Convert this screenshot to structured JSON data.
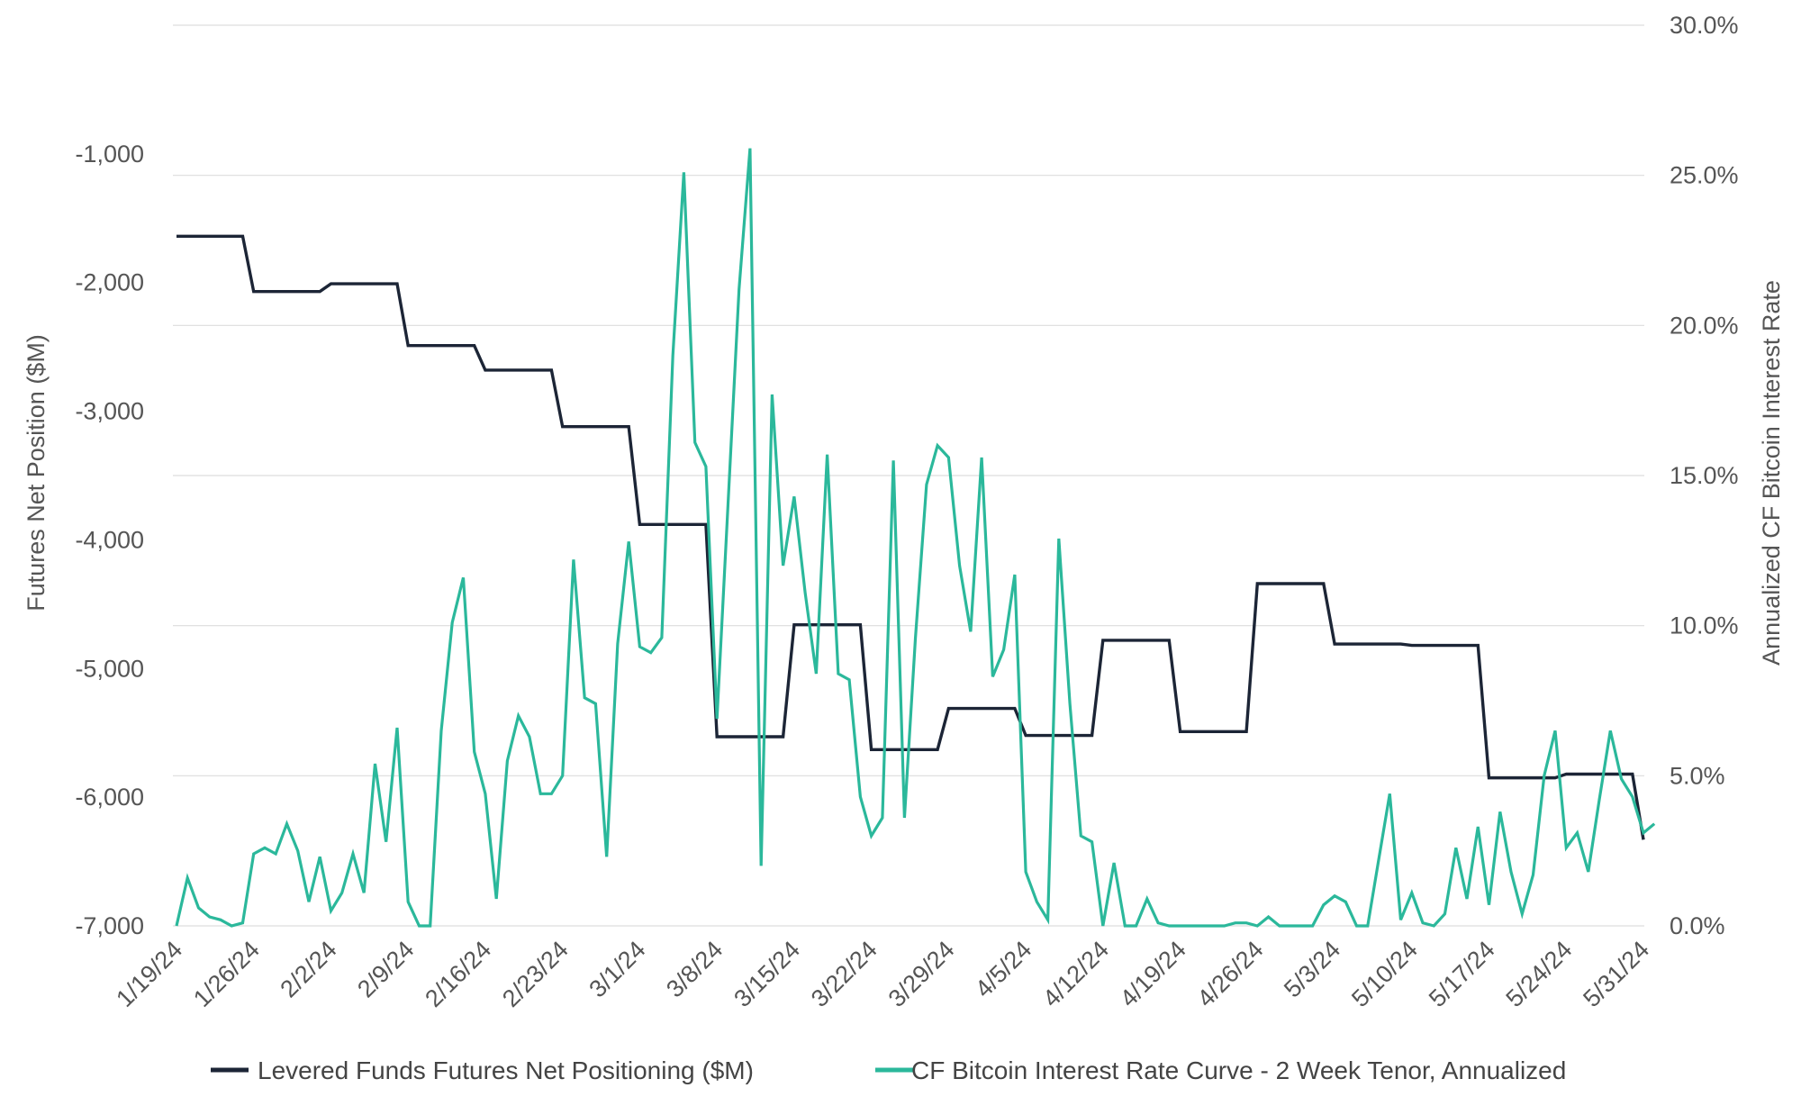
{
  "chart_data": {
    "type": "line",
    "xlabel": "",
    "y_left": {
      "label": "Futures Net Position ($M)",
      "ticks": [
        "-1,000",
        "-2,000",
        "-3,000",
        "-4,000",
        "-5,000",
        "-6,000",
        "-7,000"
      ],
      "tick_values": [
        -1000,
        -2000,
        -3000,
        -4000,
        -5000,
        -6000,
        -7000
      ],
      "range": [
        -7000,
        0
      ]
    },
    "y_right": {
      "label": "Annualized CF Bitcoin Interest Rate",
      "ticks": [
        "30.0%",
        "25.0%",
        "20.0%",
        "15.0%",
        "10.0%",
        "5.0%",
        "0.0%"
      ],
      "tick_values": [
        30,
        25,
        20,
        15,
        10,
        5,
        0
      ],
      "range": [
        0,
        30
      ]
    },
    "x_ticks": [
      "1/19/24",
      "1/26/24",
      "2/2/24",
      "2/9/24",
      "2/16/24",
      "2/23/24",
      "3/1/24",
      "3/8/24",
      "3/15/24",
      "3/22/24",
      "3/29/24",
      "4/5/24",
      "4/12/24",
      "4/19/24",
      "4/26/24",
      "5/3/24",
      "5/10/24",
      "5/17/24",
      "5/24/24",
      "5/31/24"
    ],
    "x_range": [
      "2024-01-19",
      "2024-05-31"
    ],
    "grid": true,
    "legend_position": "bottom",
    "colors": {
      "levered": "#1c2536",
      "rate": "#2bb89b",
      "grid": "#dddddd"
    },
    "series": [
      {
        "name": "Levered Funds Futures Net Positioning ($M)",
        "axis": "left",
        "points": [
          [
            "2024-01-19",
            -1640
          ],
          [
            "2024-01-25",
            -1640
          ],
          [
            "2024-01-26",
            -2070
          ],
          [
            "2024-02-01",
            -2070
          ],
          [
            "2024-02-02",
            -2010
          ],
          [
            "2024-02-08",
            -2010
          ],
          [
            "2024-02-09",
            -2490
          ],
          [
            "2024-02-15",
            -2490
          ],
          [
            "2024-02-16",
            -2680
          ],
          [
            "2024-02-22",
            -2680
          ],
          [
            "2024-02-23",
            -3120
          ],
          [
            "2024-02-29",
            -3120
          ],
          [
            "2024-03-01",
            -3880
          ],
          [
            "2024-03-07",
            -3880
          ],
          [
            "2024-03-08",
            -5530
          ],
          [
            "2024-03-14",
            -5530
          ],
          [
            "2024-03-15",
            -4660
          ],
          [
            "2024-03-21",
            -4660
          ],
          [
            "2024-03-22",
            -5630
          ],
          [
            "2024-03-28",
            -5630
          ],
          [
            "2024-03-29",
            -5310
          ],
          [
            "2024-04-04",
            -5310
          ],
          [
            "2024-04-05",
            -5520
          ],
          [
            "2024-04-11",
            -5520
          ],
          [
            "2024-04-12",
            -4780
          ],
          [
            "2024-04-18",
            -4780
          ],
          [
            "2024-04-19",
            -5490
          ],
          [
            "2024-04-25",
            -5490
          ],
          [
            "2024-04-26",
            -4340
          ],
          [
            "2024-05-02",
            -4340
          ],
          [
            "2024-05-03",
            -4810
          ],
          [
            "2024-05-09",
            -4810
          ],
          [
            "2024-05-10",
            -4820
          ],
          [
            "2024-05-16",
            -4820
          ],
          [
            "2024-05-17",
            -5850
          ],
          [
            "2024-05-23",
            -5850
          ],
          [
            "2024-05-24",
            -5820
          ],
          [
            "2024-05-30",
            -5820
          ],
          [
            "2024-05-31",
            -6330
          ]
        ]
      },
      {
        "name": "CF Bitcoin Interest Rate Curve - 2 Week Tenor, Annualized",
        "axis": "right",
        "points": [
          [
            "2024-01-19",
            0.0
          ],
          [
            "2024-01-20",
            1.6
          ],
          [
            "2024-01-21",
            0.6
          ],
          [
            "2024-01-22",
            0.3
          ],
          [
            "2024-01-23",
            0.2
          ],
          [
            "2024-01-24",
            0.0
          ],
          [
            "2024-01-25",
            0.1
          ],
          [
            "2024-01-26",
            2.4
          ],
          [
            "2024-01-27",
            2.6
          ],
          [
            "2024-01-28",
            2.4
          ],
          [
            "2024-01-29",
            3.4
          ],
          [
            "2024-01-30",
            2.5
          ],
          [
            "2024-01-31",
            0.8
          ],
          [
            "2024-02-01",
            2.3
          ],
          [
            "2024-02-02",
            0.5
          ],
          [
            "2024-02-03",
            1.1
          ],
          [
            "2024-02-04",
            2.4
          ],
          [
            "2024-02-05",
            1.1
          ],
          [
            "2024-02-06",
            5.4
          ],
          [
            "2024-02-07",
            2.8
          ],
          [
            "2024-02-08",
            6.6
          ],
          [
            "2024-02-09",
            0.8
          ],
          [
            "2024-02-10",
            0.0
          ],
          [
            "2024-02-11",
            0.0
          ],
          [
            "2024-02-12",
            6.5
          ],
          [
            "2024-02-13",
            10.1
          ],
          [
            "2024-02-14",
            11.6
          ],
          [
            "2024-02-15",
            5.8
          ],
          [
            "2024-02-16",
            4.4
          ],
          [
            "2024-02-17",
            0.9
          ],
          [
            "2024-02-18",
            5.5
          ],
          [
            "2024-02-19",
            7.0
          ],
          [
            "2024-02-20",
            6.3
          ],
          [
            "2024-02-21",
            4.4
          ],
          [
            "2024-02-22",
            4.4
          ],
          [
            "2024-02-23",
            5.0
          ],
          [
            "2024-02-24",
            12.2
          ],
          [
            "2024-02-25",
            7.6
          ],
          [
            "2024-02-26",
            7.4
          ],
          [
            "2024-02-27",
            2.3
          ],
          [
            "2024-02-28",
            9.4
          ],
          [
            "2024-02-29",
            12.8
          ],
          [
            "2024-03-01",
            9.3
          ],
          [
            "2024-03-02",
            9.1
          ],
          [
            "2024-03-03",
            9.6
          ],
          [
            "2024-03-04",
            19.0
          ],
          [
            "2024-03-05",
            25.1
          ],
          [
            "2024-03-06",
            16.1
          ],
          [
            "2024-03-07",
            15.3
          ],
          [
            "2024-03-08",
            6.9
          ],
          [
            "2024-03-09",
            14.0
          ],
          [
            "2024-03-10",
            21.2
          ],
          [
            "2024-03-11",
            25.9
          ],
          [
            "2024-03-12",
            2.0
          ],
          [
            "2024-03-13",
            17.7
          ],
          [
            "2024-03-14",
            12.0
          ],
          [
            "2024-03-15",
            14.3
          ],
          [
            "2024-03-16",
            11.1
          ],
          [
            "2024-03-17",
            8.4
          ],
          [
            "2024-03-18",
            15.7
          ],
          [
            "2024-03-19",
            8.4
          ],
          [
            "2024-03-20",
            8.2
          ],
          [
            "2024-03-21",
            4.3
          ],
          [
            "2024-03-22",
            3.0
          ],
          [
            "2024-03-23",
            3.6
          ],
          [
            "2024-03-24",
            15.5
          ],
          [
            "2024-03-25",
            3.6
          ],
          [
            "2024-03-26",
            9.6
          ],
          [
            "2024-03-27",
            14.7
          ],
          [
            "2024-03-28",
            16.0
          ],
          [
            "2024-03-29",
            15.6
          ],
          [
            "2024-03-30",
            12.0
          ],
          [
            "2024-03-31",
            9.8
          ],
          [
            "2024-04-01",
            15.6
          ],
          [
            "2024-04-02",
            8.3
          ],
          [
            "2024-04-03",
            9.2
          ],
          [
            "2024-04-04",
            11.7
          ],
          [
            "2024-04-05",
            1.8
          ],
          [
            "2024-04-06",
            0.8
          ],
          [
            "2024-04-07",
            0.2
          ],
          [
            "2024-04-08",
            12.9
          ],
          [
            "2024-04-09",
            7.4
          ],
          [
            "2024-04-10",
            3.0
          ],
          [
            "2024-04-11",
            2.8
          ],
          [
            "2024-04-12",
            0.0
          ],
          [
            "2024-04-13",
            2.1
          ],
          [
            "2024-04-14",
            0.0
          ],
          [
            "2024-04-15",
            0.0
          ],
          [
            "2024-04-16",
            0.9
          ],
          [
            "2024-04-17",
            0.1
          ],
          [
            "2024-04-18",
            0.0
          ],
          [
            "2024-04-19",
            0.0
          ],
          [
            "2024-04-20",
            0.0
          ],
          [
            "2024-04-21",
            0.0
          ],
          [
            "2024-04-22",
            0.0
          ],
          [
            "2024-04-23",
            0.0
          ],
          [
            "2024-04-24",
            0.1
          ],
          [
            "2024-04-25",
            0.1
          ],
          [
            "2024-04-26",
            0.0
          ],
          [
            "2024-04-27",
            0.3
          ],
          [
            "2024-04-28",
            0.0
          ],
          [
            "2024-04-29",
            0.0
          ],
          [
            "2024-04-30",
            0.0
          ],
          [
            "2024-05-01",
            0.0
          ],
          [
            "2024-05-02",
            0.7
          ],
          [
            "2024-05-03",
            1.0
          ],
          [
            "2024-05-04",
            0.8
          ],
          [
            "2024-05-05",
            0.0
          ],
          [
            "2024-05-06",
            0.0
          ],
          [
            "2024-05-07",
            2.2
          ],
          [
            "2024-05-08",
            4.4
          ],
          [
            "2024-05-09",
            0.2
          ],
          [
            "2024-05-10",
            1.1
          ],
          [
            "2024-05-11",
            0.1
          ],
          [
            "2024-05-12",
            0.0
          ],
          [
            "2024-05-13",
            0.4
          ],
          [
            "2024-05-14",
            2.6
          ],
          [
            "2024-05-15",
            0.9
          ],
          [
            "2024-05-16",
            3.3
          ],
          [
            "2024-05-17",
            0.7
          ],
          [
            "2024-05-18",
            3.8
          ],
          [
            "2024-05-19",
            1.8
          ],
          [
            "2024-05-20",
            0.4
          ],
          [
            "2024-05-21",
            1.7
          ],
          [
            "2024-05-22",
            5.0
          ],
          [
            "2024-05-23",
            6.5
          ],
          [
            "2024-05-24",
            2.6
          ],
          [
            "2024-05-25",
            3.1
          ],
          [
            "2024-05-26",
            1.8
          ],
          [
            "2024-05-27",
            4.2
          ],
          [
            "2024-05-28",
            6.5
          ],
          [
            "2024-05-29",
            4.9
          ],
          [
            "2024-05-30",
            4.3
          ],
          [
            "2024-05-31",
            3.1
          ],
          [
            "2024-06-01",
            3.4
          ]
        ]
      }
    ]
  }
}
